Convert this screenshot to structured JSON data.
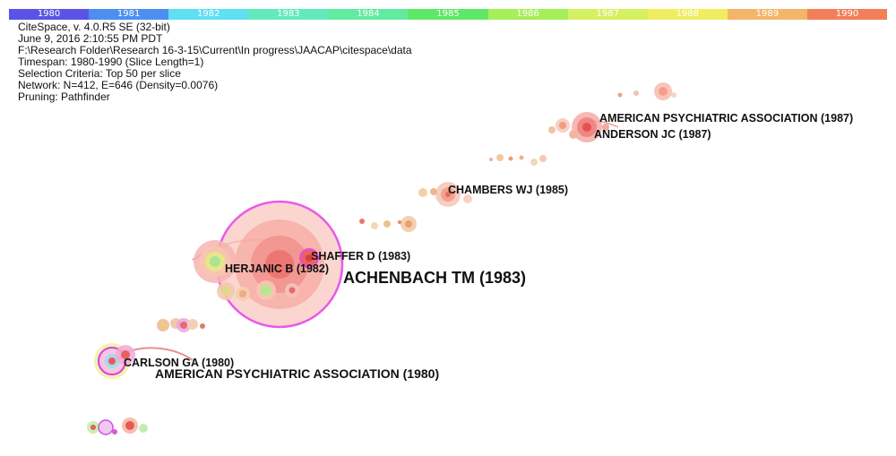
{
  "timeline": {
    "years": [
      "1980",
      "1981",
      "1982",
      "1983",
      "1984",
      "1985",
      "1986",
      "1987",
      "1988",
      "1989",
      "1990"
    ],
    "colors": [
      "#5a54e6",
      "#4d8ff0",
      "#5fe0f2",
      "#62eabd",
      "#62eba0",
      "#5fe868",
      "#a6ee5a",
      "#d5f060",
      "#f0ee60",
      "#f3b668",
      "#f27f5a"
    ]
  },
  "info": {
    "lines": [
      "CiteSpace, v. 4.0.R5 SE (32-bit)",
      "June 9, 2016 2:10:55 PM PDT",
      "F:\\Research Folder\\Research 16-3-15\\Current\\In progress\\JAACAP\\citespace\\data",
      "Timespan: 1980-1990 (Slice Length=1)",
      "Selection Criteria: Top 50 per slice",
      "Network: N=412, E=646 (Density=0.0076)",
      "Pruning: Pathfinder"
    ]
  },
  "labels": {
    "apa_1987": "AMERICAN PSYCHIATRIC ASSOCIATION (1987)",
    "anderson": "ANDERSON JC (1987)",
    "chambers": "CHAMBERS WJ (1985)",
    "shaffer": "SHAFFER D (1983)",
    "herjanic": "HERJANIC B (1982)",
    "achenbach": "ACHENBACH TM (1983)",
    "carlson": "CARLSON GA (1980)",
    "apa_1980": "AMERICAN PSYCHIATRIC ASSOCIATION (1980)"
  }
}
